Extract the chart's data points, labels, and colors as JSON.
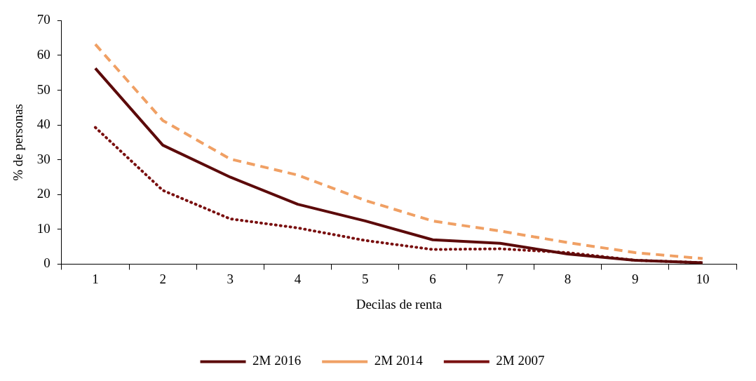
{
  "chart_data": {
    "type": "line",
    "xlabel": "Decilas de renta",
    "ylabel": "% de personas",
    "categories": [
      "1",
      "2",
      "3",
      "4",
      "5",
      "6",
      "7",
      "8",
      "9",
      "10"
    ],
    "series": [
      {
        "name": "2M 2016",
        "color": "#5c0a0a",
        "line_style": "solid",
        "values": [
          56.3,
          34.2,
          25,
          17.2,
          12.4,
          7,
          6,
          2.9,
          1.1,
          0.4
        ]
      },
      {
        "name": "2M 2014",
        "color": "#f0a064",
        "line_style": "dashed",
        "values": [
          63.2,
          41.3,
          30.2,
          25.6,
          18.3,
          12.4,
          9.5,
          6.2,
          3.3,
          1.6
        ]
      },
      {
        "name": "2M 2007",
        "color": "#7a1010",
        "line_style": "dotted",
        "values": [
          39.3,
          21.2,
          13,
          10.4,
          6.8,
          4.2,
          4.4,
          3.3,
          1.1,
          0.4
        ]
      }
    ],
    "ylim": [
      0,
      70
    ],
    "yticks": [
      0,
      10,
      20,
      30,
      40,
      50,
      60,
      70
    ],
    "grid": false,
    "legend": "bottom",
    "marker": "none"
  }
}
